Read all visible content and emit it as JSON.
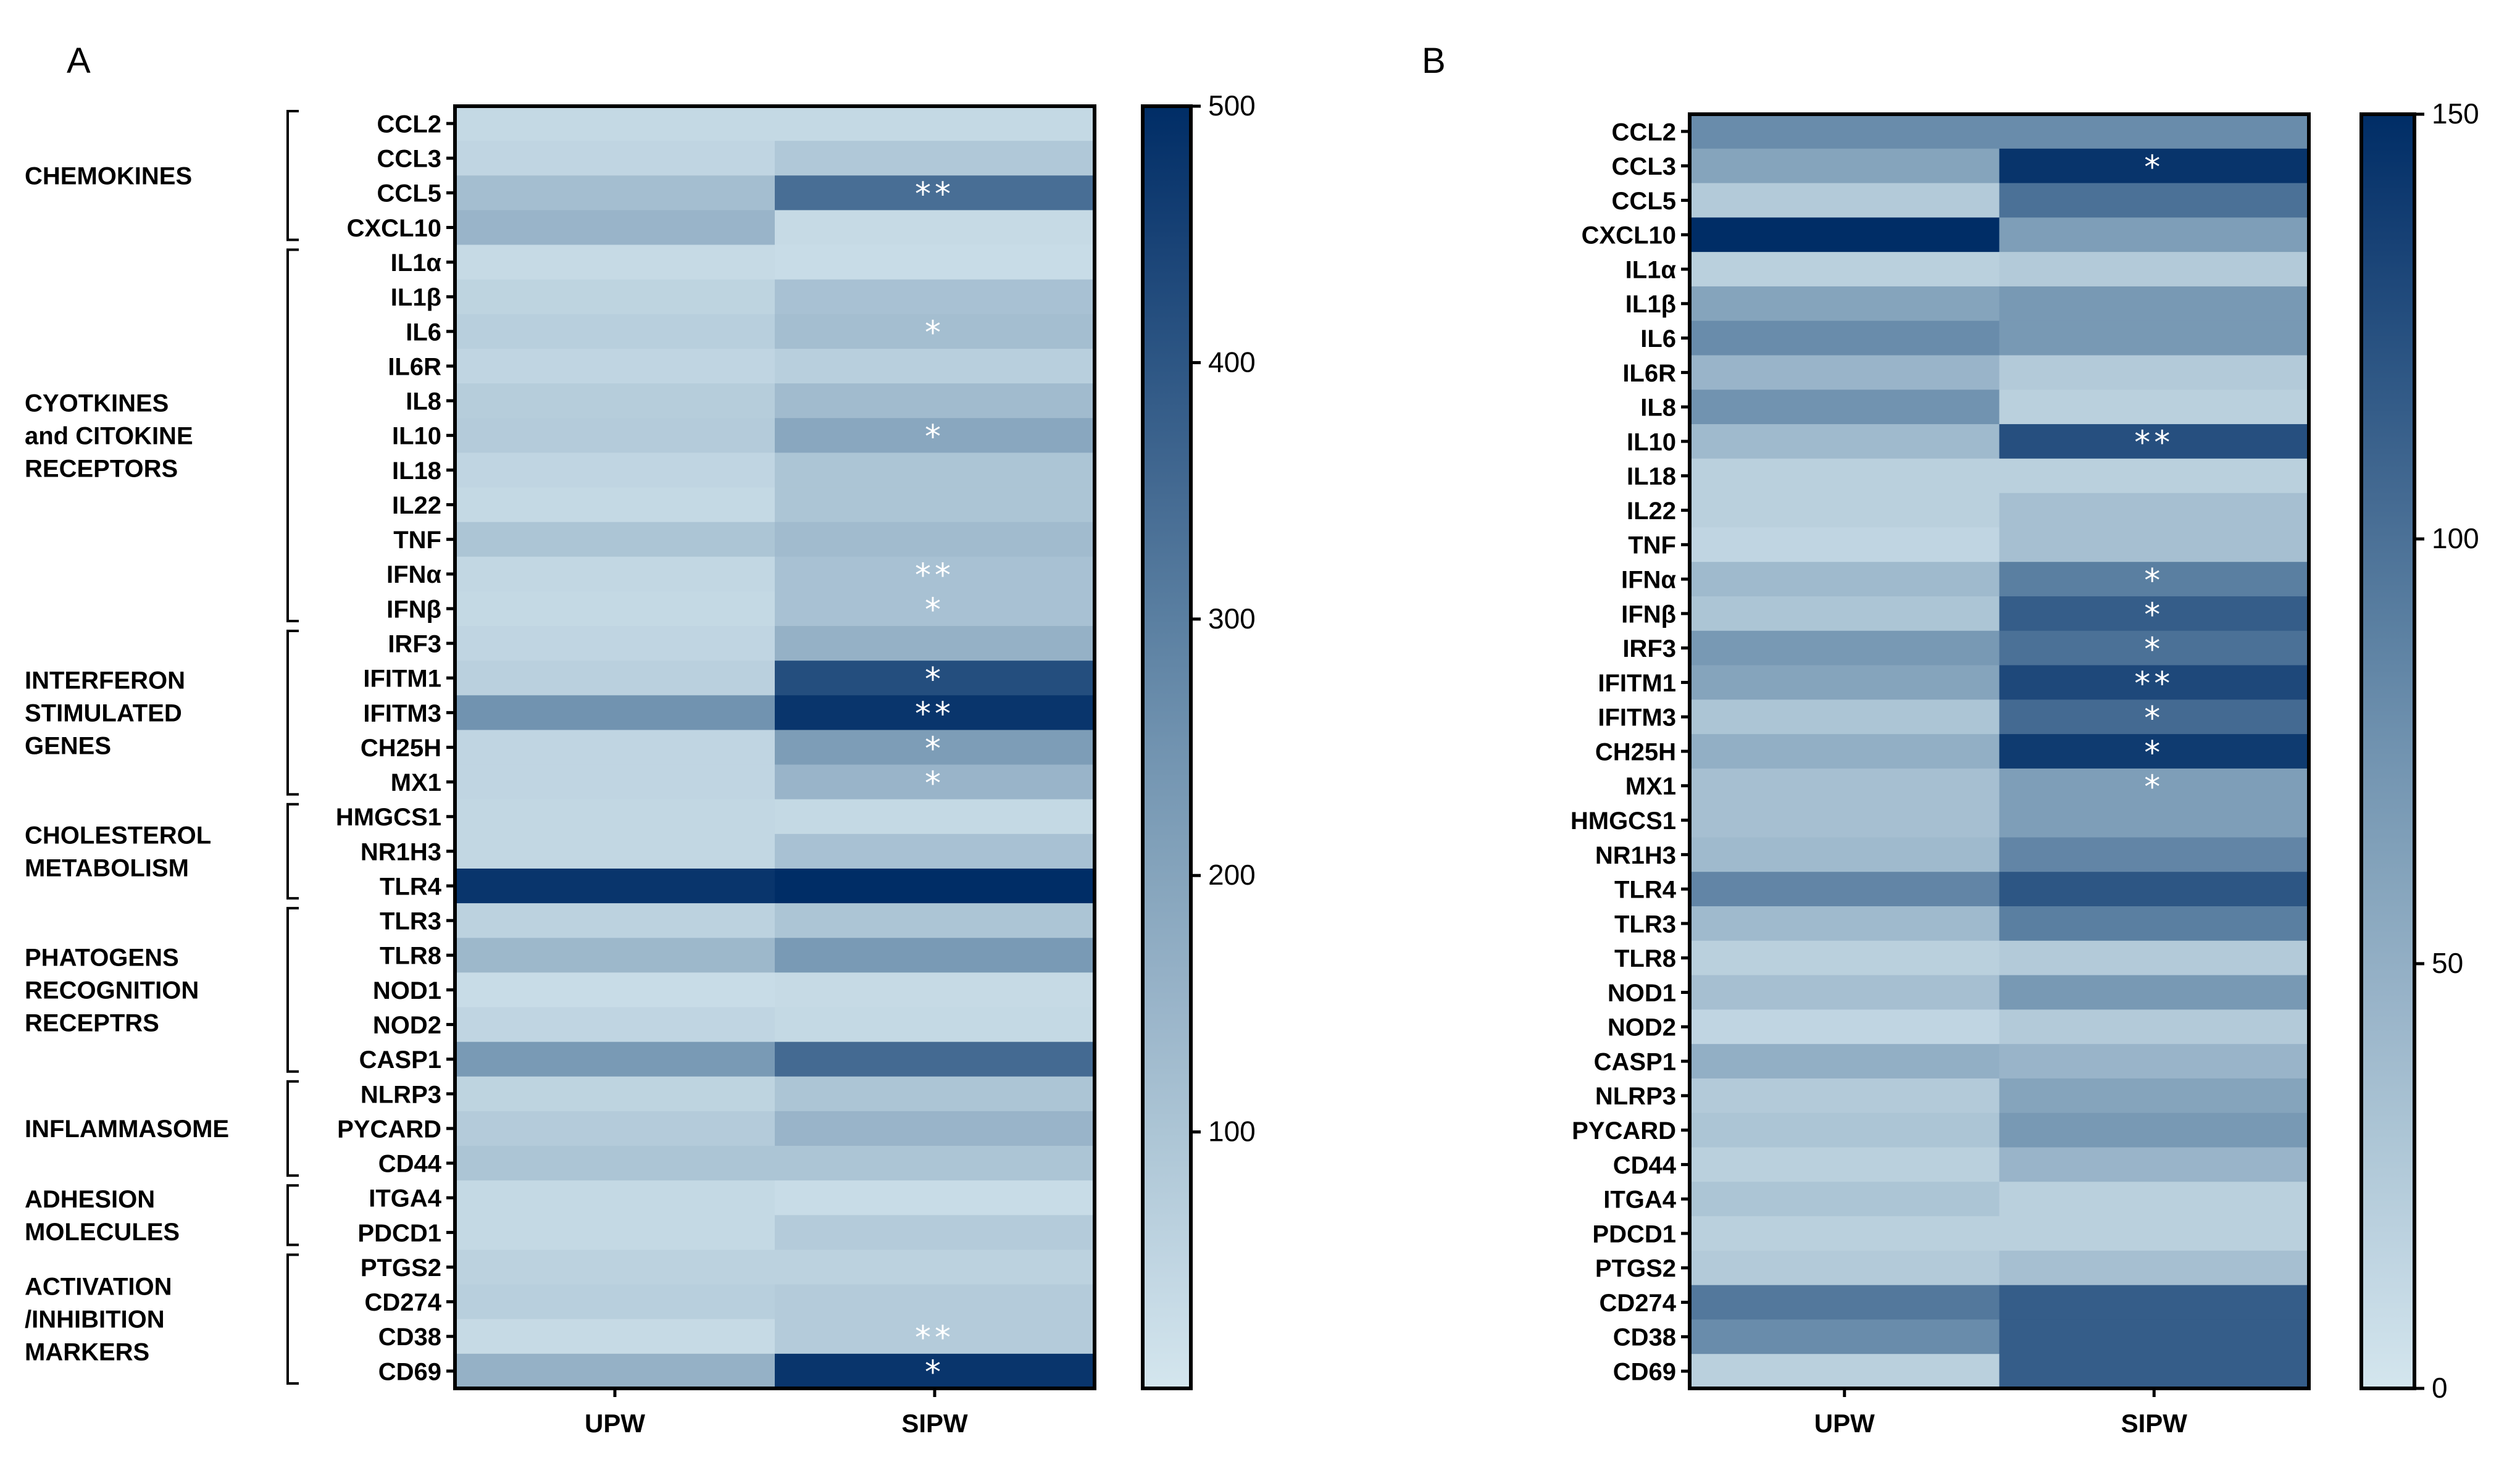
{
  "panels": {
    "A": {
      "letter": "A"
    },
    "B": {
      "letter": "B"
    }
  },
  "colors": {
    "low": "#d4e6ee",
    "mid": "#7193b0",
    "high": "#002d66",
    "dark": "#253152",
    "frame": "#000000",
    "star": "#ffffff"
  },
  "chart_data": [
    {
      "type": "heatmap",
      "panel": "A",
      "title": "",
      "columns": [
        "UPW",
        "SIPW"
      ],
      "rows": [
        "CCL2",
        "CCL3",
        "CCL5",
        "CXCL10",
        "IL1α",
        "IL1β",
        "IL6",
        "IL6R",
        "IL8",
        "IL10",
        "IL18",
        "IL22",
        "TNF",
        "IFNα",
        "IFNβ",
        "IRF3",
        "IFITM1",
        "IFITM3",
        "CH25H",
        "MX1",
        "HMGCS1",
        "NR1H3",
        "TLR4",
        "TLR3",
        "TLR8",
        "NOD1",
        "NOD2",
        "CASP1",
        "NLRP3",
        "PYCARD",
        "CD44",
        "ITGA4",
        "PDCD1",
        "PTGS2",
        "CD274",
        "CD38",
        "CD69"
      ],
      "values": [
        [
          40,
          40
        ],
        [
          50,
          90
        ],
        [
          120,
          340
        ],
        [
          150,
          35
        ],
        [
          35,
          30
        ],
        [
          55,
          110
        ],
        [
          70,
          120
        ],
        [
          50,
          70
        ],
        [
          75,
          130
        ],
        [
          80,
          190
        ],
        [
          50,
          100
        ],
        [
          40,
          100
        ],
        [
          100,
          130
        ],
        [
          45,
          110
        ],
        [
          40,
          110
        ],
        [
          50,
          160
        ],
        [
          65,
          420
        ],
        [
          250,
          480
        ],
        [
          50,
          220
        ],
        [
          50,
          150
        ],
        [
          45,
          40
        ],
        [
          45,
          110
        ],
        [
          480,
          500
        ],
        [
          60,
          100
        ],
        [
          140,
          230
        ],
        [
          30,
          35
        ],
        [
          50,
          40
        ],
        [
          230,
          350
        ],
        [
          55,
          100
        ],
        [
          80,
          150
        ],
        [
          100,
          100
        ],
        [
          40,
          30
        ],
        [
          40,
          80
        ],
        [
          60,
          60
        ],
        [
          70,
          80
        ],
        [
          35,
          80
        ],
        [
          160,
          480
        ]
      ],
      "annotations": [
        "",
        "",
        "**",
        "",
        "",
        "",
        "*",
        "",
        "",
        "*",
        "",
        "",
        "",
        "**",
        "*",
        "",
        "*",
        "**",
        "*",
        "*",
        "",
        "",
        "",
        "",
        "",
        "",
        "",
        "",
        "",
        "",
        "",
        "",
        "",
        "",
        "",
        "**",
        "*"
      ],
      "groups": [
        {
          "label": [
            "CHEMOKINES"
          ],
          "start": 0,
          "end": 3
        },
        {
          "label": [
            "CYOTKINES",
            "and CITOKINE",
            "RECEPTORS"
          ],
          "start": 4,
          "end": 14
        },
        {
          "label": [
            "INTERFERON",
            "STIMULATED",
            "GENES"
          ],
          "start": 15,
          "end": 19
        },
        {
          "label": [
            "CHOLESTEROL",
            "METABOLISM"
          ],
          "start": 20,
          "end": 22
        },
        {
          "label": [
            "PHATOGENS",
            "RECOGNITION",
            "RECEPTRS"
          ],
          "start": 23,
          "end": 27
        },
        {
          "label": [
            "INFLAMMASOME"
          ],
          "start": 28,
          "end": 30
        },
        {
          "label": [
            "ADHESION",
            "MOLECULES"
          ],
          "start": 31,
          "end": 32
        },
        {
          "label": [
            "ACTIVATION",
            "/INHIBITION",
            "MARKERS"
          ],
          "start": 33,
          "end": 36
        }
      ],
      "colorbar": {
        "min": 0,
        "max": 500,
        "ticks": [
          100,
          200,
          300,
          400,
          500
        ],
        "tick_labels": [
          "100",
          "200",
          "300",
          "400",
          "500"
        ]
      }
    },
    {
      "type": "heatmap",
      "panel": "B",
      "title": "",
      "columns": [
        "UPW",
        "SIPW"
      ],
      "rows": [
        "CCL2",
        "CCL3",
        "CCL5",
        "CXCL10",
        "IL1α",
        "IL1β",
        "IL6",
        "IL6R",
        "IL8",
        "IL10",
        "IL18",
        "IL22",
        "TNF",
        "IFNα",
        "IFNβ",
        "IRF3",
        "IFITM1",
        "IFITM3",
        "CH25H",
        "MX1",
        "HMGCS1",
        "NR1H3",
        "TLR4",
        "TLR3",
        "TLR8",
        "NOD1",
        "NOD2",
        "CASP1",
        "NLRP3",
        "PYCARD",
        "CD44",
        "ITGA4",
        "PDCD1",
        "PTGS2",
        "CD274",
        "CD38",
        "CD69"
      ],
      "values": [
        [
          80,
          80
        ],
        [
          60,
          145
        ],
        [
          25,
          100
        ],
        [
          150,
          65
        ],
        [
          20,
          25
        ],
        [
          60,
          70
        ],
        [
          80,
          70
        ],
        [
          45,
          25
        ],
        [
          75,
          20
        ],
        [
          40,
          125
        ],
        [
          20,
          20
        ],
        [
          20,
          35
        ],
        [
          15,
          35
        ],
        [
          40,
          90
        ],
        [
          30,
          115
        ],
        [
          70,
          100
        ],
        [
          60,
          130
        ],
        [
          30,
          105
        ],
        [
          50,
          140
        ],
        [
          35,
          65
        ],
        [
          35,
          65
        ],
        [
          40,
          85
        ],
        [
          85,
          120
        ],
        [
          40,
          90
        ],
        [
          20,
          25
        ],
        [
          35,
          70
        ],
        [
          15,
          25
        ],
        [
          50,
          45
        ],
        [
          25,
          60
        ],
        [
          30,
          70
        ],
        [
          20,
          45
        ],
        [
          30,
          20
        ],
        [
          20,
          20
        ],
        [
          25,
          35
        ],
        [
          95,
          115
        ],
        [
          80,
          115
        ],
        [
          20,
          115
        ]
      ],
      "annotations": [
        "",
        "*",
        "",
        "",
        "",
        "",
        "",
        "",
        "",
        "**",
        "",
        "",
        "",
        "*",
        "*",
        "*",
        "**",
        "*",
        "*",
        "*",
        "",
        "",
        "",
        "",
        "",
        "",
        "",
        "",
        "",
        "",
        "",
        "",
        "",
        "",
        "",
        "",
        ""
      ],
      "colorbar": {
        "min": 0,
        "max": 150,
        "ticks": [
          0,
          50,
          100,
          150
        ],
        "tick_labels": [
          "0",
          "50",
          "100",
          "150"
        ]
      }
    }
  ]
}
